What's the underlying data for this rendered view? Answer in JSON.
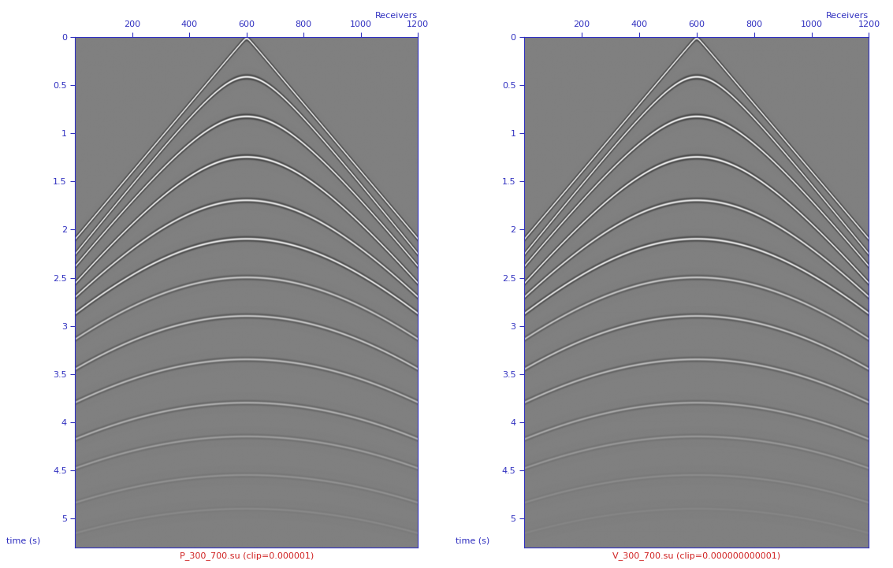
{
  "chart_data": [
    {
      "type": "seismic",
      "title": "P_300_700.su (clip=0.000001)",
      "x_label": "Receivers",
      "y_label": "time (s)",
      "xlim": [
        0,
        1200
      ],
      "ylim": [
        5.3,
        0
      ],
      "xticks": [
        200,
        400,
        600,
        800,
        1000,
        1200
      ],
      "yticks": [
        0,
        0.5,
        1,
        1.5,
        2,
        2.5,
        3,
        3.5,
        4,
        4.5,
        5
      ],
      "source_receiver": 600,
      "events": [
        {
          "t0": 0.02,
          "velocity": 285,
          "amplitude": 1.0
        },
        {
          "t0": 0.42,
          "velocity": 270,
          "amplitude": 1.0
        },
        {
          "t0": 0.83,
          "velocity": 268,
          "amplitude": 1.0
        },
        {
          "t0": 1.25,
          "velocity": 268,
          "amplitude": 1.0
        },
        {
          "t0": 1.7,
          "velocity": 285,
          "amplitude": 0.9
        },
        {
          "t0": 2.1,
          "velocity": 305,
          "amplitude": 0.9
        },
        {
          "t0": 2.5,
          "velocity": 315,
          "amplitude": 0.6
        },
        {
          "t0": 2.9,
          "velocity": 320,
          "amplitude": 0.6
        },
        {
          "t0": 3.35,
          "velocity": 335,
          "amplitude": 0.5
        },
        {
          "t0": 3.8,
          "velocity": 345,
          "amplitude": 0.4
        },
        {
          "t0": 4.15,
          "velocity": 355,
          "amplitude": 0.25
        },
        {
          "t0": 4.55,
          "velocity": 365,
          "amplitude": 0.15
        },
        {
          "t0": 4.9,
          "velocity": 375,
          "amplitude": 0.08
        }
      ]
    },
    {
      "type": "seismic",
      "title": "V_300_700.su (clip=0.000000000001)",
      "x_label": "Receivers",
      "y_label": "time (s)",
      "xlim": [
        0,
        1200
      ],
      "ylim": [
        5.3,
        0
      ],
      "xticks": [
        200,
        400,
        600,
        800,
        1000,
        1200
      ],
      "yticks": [
        0,
        0.5,
        1,
        1.5,
        2,
        2.5,
        3,
        3.5,
        4,
        4.5,
        5
      ],
      "source_receiver": 600,
      "events": [
        {
          "t0": 0.02,
          "velocity": 285,
          "amplitude": 1.0
        },
        {
          "t0": 0.42,
          "velocity": 270,
          "amplitude": 1.0
        },
        {
          "t0": 0.83,
          "velocity": 268,
          "amplitude": 1.0
        },
        {
          "t0": 1.25,
          "velocity": 268,
          "amplitude": 1.0
        },
        {
          "t0": 1.7,
          "velocity": 285,
          "amplitude": 0.9
        },
        {
          "t0": 2.1,
          "velocity": 305,
          "amplitude": 0.9
        },
        {
          "t0": 2.5,
          "velocity": 315,
          "amplitude": 0.6
        },
        {
          "t0": 2.9,
          "velocity": 320,
          "amplitude": 0.6
        },
        {
          "t0": 3.35,
          "velocity": 335,
          "amplitude": 0.5
        },
        {
          "t0": 3.8,
          "velocity": 345,
          "amplitude": 0.35
        },
        {
          "t0": 4.15,
          "velocity": 355,
          "amplitude": 0.2
        },
        {
          "t0": 4.55,
          "velocity": 365,
          "amplitude": 0.1
        },
        {
          "t0": 4.9,
          "velocity": 375,
          "amplitude": 0.05
        }
      ]
    }
  ]
}
